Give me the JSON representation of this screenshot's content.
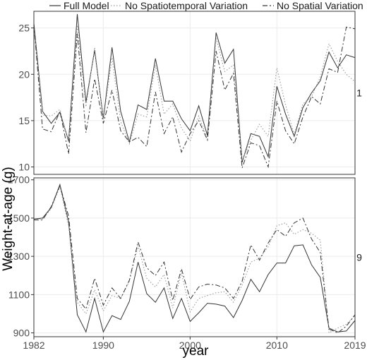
{
  "chart_data": {
    "type": "line",
    "xlabel": "year",
    "ylabel": "Weight-at-age (g)",
    "x_ticks": [
      1982,
      1990,
      2000,
      2010,
      2019
    ],
    "xlim": [
      1982,
      2019
    ],
    "legend": {
      "placement": "top",
      "entries": [
        {
          "label": "Full Model",
          "dash": "solid"
        },
        {
          "label": "No Spatiotemporal Variation",
          "dash": "dotted"
        },
        {
          "label": "No Spatial Variation",
          "dash": "dashed"
        }
      ]
    },
    "panels": [
      {
        "strip_label": "1",
        "ylim": [
          9.2,
          26.8
        ],
        "y_ticks": [
          10,
          15,
          20,
          25
        ],
        "x": [
          1982,
          1983,
          1984,
          1985,
          1986,
          1987,
          1988,
          1989,
          1990,
          1991,
          1992,
          1993,
          1994,
          1995,
          1996,
          1997,
          1998,
          1999,
          2000,
          2001,
          2002,
          2003,
          2004,
          2005,
          2006,
          2007,
          2008,
          2009,
          2010,
          2011,
          2012,
          2013,
          2014,
          2015,
          2016,
          2017,
          2018,
          2019
        ],
        "series": [
          {
            "name": "Full Model",
            "values": [
              25.5,
              16.0,
              14.7,
              15.9,
              12.8,
              26.5,
              17.0,
              22.6,
              15.2,
              22.9,
              16.0,
              12.7,
              16.7,
              16.2,
              21.7,
              17.1,
              17.1,
              15.2,
              13.9,
              16.6,
              13.4,
              24.5,
              21.2,
              22.7,
              10.5,
              13.6,
              13.3,
              11.1,
              18.7,
              15.7,
              13.3,
              16.4,
              18.0,
              19.3,
              22.4,
              20.7,
              22.1,
              21.8
            ]
          },
          {
            "name": "No Spatiotemporal Variation",
            "values": [
              25.2,
              15.6,
              15.5,
              16.2,
              12.6,
              25.3,
              16.5,
              22.9,
              15.1,
              21.8,
              14.9,
              12.5,
              15.7,
              15.4,
              21.0,
              15.7,
              16.8,
              14.2,
              12.8,
              15.5,
              13.0,
              23.9,
              20.3,
              21.0,
              10.7,
              12.9,
              14.6,
              13.3,
              20.7,
              16.7,
              13.5,
              16.8,
              17.6,
              19.7,
              23.3,
              21.4,
              20.0,
              19.2
            ]
          },
          {
            "name": "No Spatial Variation",
            "values": [
              25.4,
              14.1,
              13.8,
              16.0,
              11.4,
              24.4,
              13.7,
              19.5,
              14.7,
              18.3,
              13.9,
              12.7,
              13.2,
              12.2,
              18.1,
              13.6,
              15.4,
              11.6,
              13.6,
              15.0,
              12.9,
              22.5,
              18.3,
              20.1,
              9.9,
              12.6,
              12.3,
              10.0,
              17.1,
              13.9,
              12.5,
              15.4,
              17.6,
              16.8,
              20.6,
              20.2,
              25.1,
              24.9
            ]
          }
        ]
      },
      {
        "strip_label": "9",
        "ylim": [
          880,
          1710
        ],
        "y_ticks": [
          900,
          1100,
          1300,
          1500,
          1700
        ],
        "x": [
          1982,
          1983,
          1984,
          1985,
          1986,
          1987,
          1988,
          1989,
          1990,
          1991,
          1992,
          1993,
          1994,
          1995,
          1996,
          1997,
          1998,
          1999,
          2000,
          2001,
          2002,
          2003,
          2004,
          2005,
          2006,
          2007,
          2008,
          2009,
          2010,
          2011,
          2012,
          2013,
          2014,
          2015,
          2016,
          2017,
          2018,
          2019
        ],
        "series": [
          {
            "name": "Full Model",
            "values": [
              1495,
              1500,
              1555,
              1675,
              1480,
              995,
              905,
              1080,
              905,
              990,
              970,
              1065,
              1270,
              1105,
              1060,
              1135,
              975,
              1080,
              960,
              1005,
              1055,
              1050,
              1040,
              980,
              1070,
              1180,
              1115,
              1205,
              1265,
              1265,
              1355,
              1360,
              1255,
              1190,
              925,
              905,
              910,
              965
            ]
          },
          {
            "name": "No Spatiotemporal Variation",
            "values": [
              1490,
              1495,
              1550,
              1665,
              1460,
              1060,
              1000,
              1125,
              1015,
              1095,
              1080,
              1170,
              1355,
              1185,
              1140,
              1205,
              1030,
              1215,
              1010,
              1080,
              1095,
              1110,
              1115,
              1060,
              1150,
              1270,
              1290,
              1350,
              1460,
              1475,
              1415,
              1440,
              1420,
              1385,
              900,
              925,
              945,
              990
            ]
          },
          {
            "name": "No Spatial Variation",
            "values": [
              1490,
              1490,
              1560,
              1670,
              1510,
              1080,
              1025,
              1185,
              1045,
              1135,
              1080,
              1175,
              1375,
              1240,
              1200,
              1270,
              1070,
              1235,
              1075,
              1140,
              1155,
              1150,
              1135,
              1080,
              1170,
              1360,
              1280,
              1370,
              1440,
              1405,
              1475,
              1500,
              1390,
              1320,
              920,
              900,
              935,
              995
            ]
          }
        ]
      }
    ]
  }
}
